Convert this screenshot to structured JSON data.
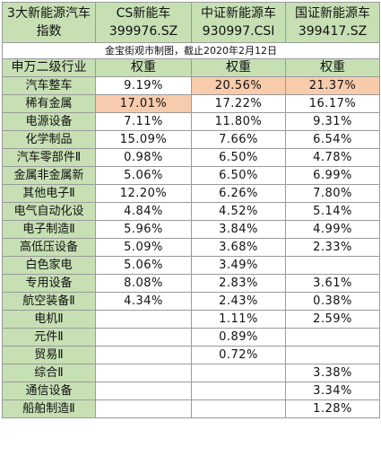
{
  "header": {
    "col0": [
      "3大新能源汽车",
      "指数"
    ],
    "col1": [
      "CS新能车",
      "399976.SZ"
    ],
    "col2": [
      "中证新能源车",
      "930997.CSI"
    ],
    "col3": [
      "国证新能源车",
      "399417.SZ"
    ]
  },
  "note": "金宝街观市制图，截止2020年2月12日",
  "subheader": {
    "col0": "申万二级行业",
    "col1": "权重",
    "col2": "权重",
    "col3": "权重"
  },
  "highlight_color": "#f8cbad",
  "header_color": "#c6e0b4",
  "rows": [
    {
      "industry": "汽车整车",
      "cs": "9.19%",
      "zz": "20.56%",
      "gz": "21.37%"
    },
    {
      "industry": "稀有金属",
      "cs": "17.01%",
      "zz": "17.22%",
      "gz": "16.17%"
    },
    {
      "industry": "电源设备",
      "cs": "7.11%",
      "zz": "11.80%",
      "gz": "9.31%"
    },
    {
      "industry": "化学制品",
      "cs": "15.09%",
      "zz": "7.66%",
      "gz": "6.54%"
    },
    {
      "industry": "汽车零部件Ⅱ",
      "cs": "0.98%",
      "zz": "6.50%",
      "gz": "4.78%"
    },
    {
      "industry": "金属非金属新",
      "cs": "5.06%",
      "zz": "6.50%",
      "gz": "6.99%"
    },
    {
      "industry": "其他电子Ⅱ",
      "cs": "12.20%",
      "zz": "6.26%",
      "gz": "7.80%"
    },
    {
      "industry": "电气自动化设",
      "cs": "4.84%",
      "zz": "4.52%",
      "gz": "5.14%"
    },
    {
      "industry": "电子制造Ⅱ",
      "cs": "5.96%",
      "zz": "3.84%",
      "gz": "4.99%"
    },
    {
      "industry": "高低压设备",
      "cs": "5.09%",
      "zz": "3.68%",
      "gz": "2.33%"
    },
    {
      "industry": "白色家电",
      "cs": "5.06%",
      "zz": "3.49%",
      "gz": ""
    },
    {
      "industry": "专用设备",
      "cs": "8.08%",
      "zz": "2.83%",
      "gz": "3.61%"
    },
    {
      "industry": "航空装备Ⅱ",
      "cs": "4.34%",
      "zz": "2.43%",
      "gz": "0.38%"
    },
    {
      "industry": "电机Ⅱ",
      "cs": "",
      "zz": "1.11%",
      "gz": "2.59%"
    },
    {
      "industry": "元件Ⅱ",
      "cs": "",
      "zz": "0.89%",
      "gz": ""
    },
    {
      "industry": "贸易Ⅱ",
      "cs": "",
      "zz": "0.72%",
      "gz": ""
    },
    {
      "industry": "综合Ⅱ",
      "cs": "",
      "zz": "",
      "gz": "3.38%"
    },
    {
      "industry": "通信设备",
      "cs": "",
      "zz": "",
      "gz": "3.34%"
    },
    {
      "industry": "船舶制造Ⅱ",
      "cs": "",
      "zz": "",
      "gz": "1.28%"
    }
  ]
}
